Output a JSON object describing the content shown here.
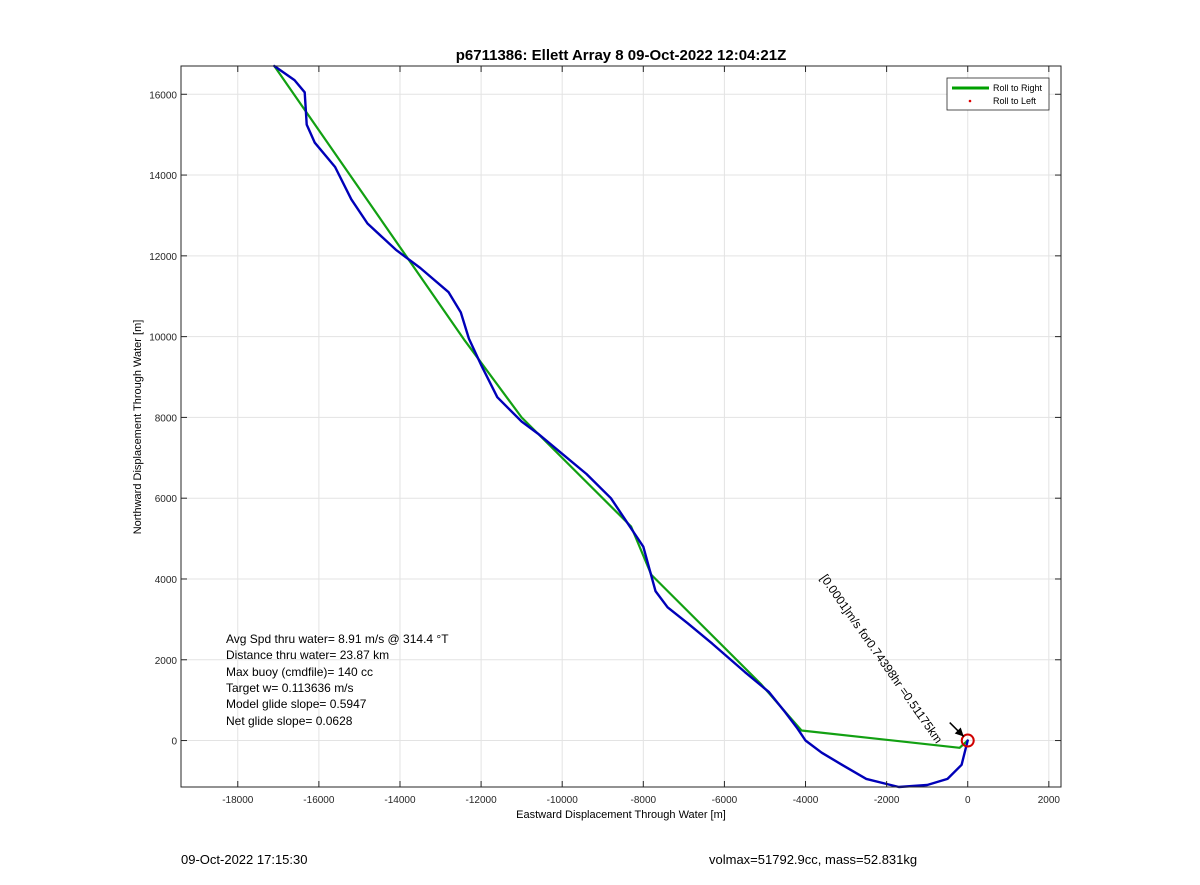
{
  "chart_data": {
    "type": "line",
    "title": "p6711386: Ellett Array 8 09-Oct-2022 12:04:21Z",
    "xlabel": "Eastward Displacement Through Water [m]",
    "ylabel": "Northward Displacement Through Water [m]",
    "xlim": [
      -19400,
      2300
    ],
    "ylim": [
      -1150,
      16700
    ],
    "xticks": [
      -18000,
      -16000,
      -14000,
      -12000,
      -10000,
      -8000,
      -6000,
      -4000,
      -2000,
      0,
      2000
    ],
    "yticks": [
      0,
      2000,
      4000,
      6000,
      8000,
      10000,
      12000,
      14000,
      16000
    ],
    "xtick_labels": [
      "-18000",
      "-16000",
      "-14000",
      "-12000",
      "-10000",
      "-8000",
      "-6000",
      "-4000",
      "-2000",
      "0",
      "2000"
    ],
    "ytick_labels": [
      "0",
      "2000",
      "4000",
      "6000",
      "8000",
      "10000",
      "12000",
      "14000",
      "16000"
    ],
    "grid": true,
    "legend_position": "top-right",
    "legend": [
      {
        "label": "Roll to Right",
        "color": "#00a000",
        "style": "line"
      },
      {
        "label": "Roll to Left",
        "color": "#e00000",
        "style": "marker"
      }
    ],
    "series": [
      {
        "name": "Roll to Right",
        "color": "#12a012",
        "x": [
          -17100,
          -12400,
          -11000,
          -8300,
          -7800,
          -5100,
          -4100,
          -200,
          0
        ],
        "y": [
          16700,
          9900,
          8000,
          5300,
          4100,
          1400,
          250,
          -180,
          0
        ]
      },
      {
        "color": "#0000b8",
        "x": [
          -17100,
          -16600,
          -16350,
          -16300,
          -16100,
          -15600,
          -15200,
          -14800,
          -14100,
          -13500,
          -12800,
          -12500,
          -12300,
          -12000,
          -11600,
          -11000,
          -10600,
          -10000,
          -9400,
          -8800,
          -8400,
          -8000,
          -7700,
          -7400,
          -6900,
          -6300,
          -5500,
          -4900,
          -4500,
          -4200,
          -4000,
          -3600,
          -3100,
          -2500,
          -1700,
          -1000,
          -500,
          -150,
          0
        ],
        "y": [
          16700,
          16350,
          16050,
          15250,
          14800,
          14200,
          13400,
          12800,
          12150,
          11700,
          11100,
          10600,
          9950,
          9300,
          8500,
          7900,
          7600,
          7100,
          6600,
          6000,
          5400,
          4800,
          3700,
          3300,
          2900,
          2400,
          1700,
          1200,
          700,
          300,
          0,
          -300,
          -600,
          -950,
          -1150,
          -1100,
          -950,
          -600,
          0
        ]
      }
    ],
    "annotations": {
      "diagonal_text": "[0.0001]m/s for0.74398hr =0.51175km",
      "stats": [
        "Avg Spd thru water=  8.91 m/s @ 314.4 °T",
        "Distance thru water= 23.87 km",
        "Max buoy (cmdfile)= 140 cc",
        "Target w= 0.113636 m/s",
        "Model glide slope= 0.5947",
        "Net glide slope= 0.0628"
      ]
    }
  },
  "footer": {
    "left": "09-Oct-2022 17:15:30",
    "right": "volmax=51792.9cc, mass=52.831kg"
  }
}
